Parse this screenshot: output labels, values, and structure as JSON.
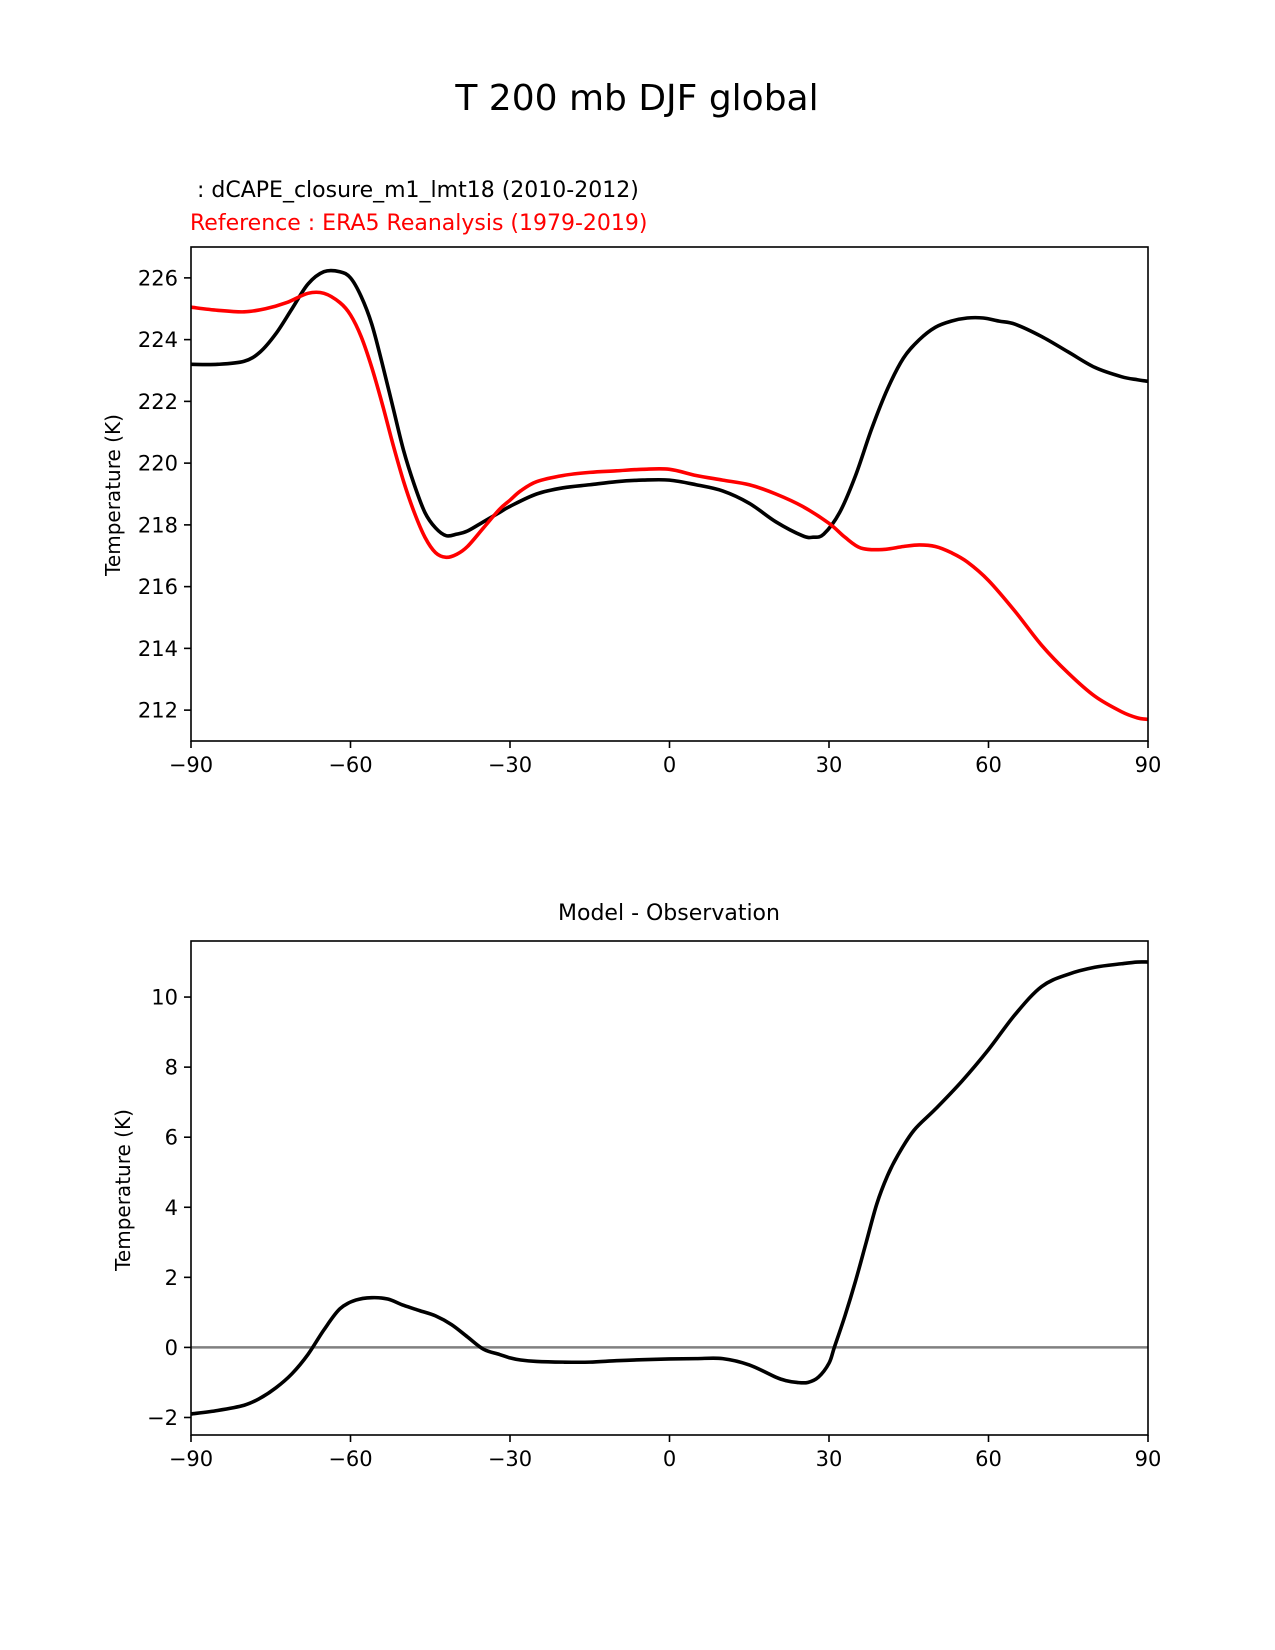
{
  "figure": {
    "suptitle": "T 200 mb DJF global"
  },
  "chart_data": [
    {
      "type": "line",
      "panel": "top",
      "title_left": "",
      "title_model": " : dCAPE_closure_m1_lmt18 (2010-2012)",
      "title_reference": "Reference : ERA5 Reanalysis (1979-2019)",
      "ylabel": "Temperature (K)",
      "xlabel": "",
      "xlim": [
        -90,
        90
      ],
      "ylim": [
        211,
        227
      ],
      "xticks": [
        -90,
        -60,
        -30,
        0,
        30,
        60,
        90
      ],
      "xtick_labels": [
        "−90",
        "−60",
        "−30",
        "0",
        "30",
        "60",
        "90"
      ],
      "yticks": [
        212,
        214,
        216,
        218,
        220,
        222,
        224,
        226
      ],
      "ytick_labels": [
        "212",
        "214",
        "216",
        "218",
        "220",
        "222",
        "224",
        "226"
      ],
      "series": [
        {
          "name": "dCAPE_closure_m1_lmt18 (2010-2012)",
          "color": "#000000",
          "x": [
            -90,
            -85,
            -80,
            -77,
            -74,
            -71,
            -68,
            -65,
            -62,
            -60,
            -58,
            -56,
            -54,
            -52,
            -50,
            -48,
            -46,
            -44,
            -42,
            -40,
            -38,
            -35,
            -32,
            -30,
            -25,
            -20,
            -15,
            -10,
            -5,
            0,
            5,
            10,
            15,
            20,
            25,
            27,
            29,
            32,
            35,
            38,
            41,
            44,
            47,
            50,
            53,
            56,
            59,
            62,
            65,
            70,
            75,
            80,
            85,
            88,
            90
          ],
          "y": [
            223.2,
            223.2,
            223.3,
            223.6,
            224.2,
            225.0,
            225.8,
            226.2,
            226.2,
            226.0,
            225.4,
            224.5,
            223.2,
            221.8,
            220.4,
            219.3,
            218.4,
            217.9,
            217.65,
            217.7,
            217.8,
            218.1,
            218.4,
            218.6,
            219.0,
            219.2,
            219.3,
            219.4,
            219.45,
            219.45,
            219.3,
            219.1,
            218.7,
            218.1,
            217.65,
            217.6,
            217.7,
            218.4,
            219.6,
            221.1,
            222.4,
            223.4,
            224.0,
            224.4,
            224.6,
            224.7,
            224.7,
            224.6,
            224.5,
            224.1,
            223.6,
            223.1,
            222.8,
            222.7,
            222.65
          ]
        },
        {
          "name": "Reference : ERA5 Reanalysis (1979-2019)",
          "color": "#ff0000",
          "x": [
            -90,
            -85,
            -80,
            -76,
            -72,
            -68,
            -65,
            -62,
            -60,
            -58,
            -56,
            -54,
            -52,
            -50,
            -48,
            -46,
            -44,
            -42,
            -40,
            -38,
            -35,
            -32,
            -30,
            -28,
            -25,
            -20,
            -15,
            -10,
            -5,
            0,
            5,
            10,
            15,
            20,
            25,
            30,
            33,
            36,
            40,
            44,
            47,
            50,
            53,
            56,
            60,
            65,
            70,
            75,
            80,
            85,
            88,
            90
          ],
          "y": [
            225.05,
            224.95,
            224.9,
            225.0,
            225.2,
            225.5,
            225.5,
            225.2,
            224.8,
            224.1,
            223.1,
            221.9,
            220.6,
            219.4,
            218.4,
            217.6,
            217.1,
            216.95,
            217.05,
            217.3,
            217.9,
            218.5,
            218.8,
            219.1,
            219.4,
            219.6,
            219.7,
            219.75,
            219.8,
            219.8,
            219.6,
            219.45,
            219.3,
            219.0,
            218.6,
            218.05,
            217.6,
            217.25,
            217.2,
            217.3,
            217.35,
            217.3,
            217.1,
            216.8,
            216.2,
            215.2,
            214.1,
            213.2,
            212.45,
            211.95,
            211.75,
            211.7
          ]
        }
      ]
    },
    {
      "type": "line",
      "panel": "bottom",
      "title": "Model - Observation",
      "ylabel": "Temperature (K)",
      "xlabel": "",
      "xlim": [
        -90,
        90
      ],
      "ylim": [
        -2.5,
        11.6
      ],
      "xticks": [
        -90,
        -60,
        -30,
        0,
        30,
        60,
        90
      ],
      "xtick_labels": [
        "−90",
        "−60",
        "−30",
        "0",
        "30",
        "60",
        "90"
      ],
      "yticks": [
        -2,
        0,
        2,
        4,
        6,
        8,
        10
      ],
      "ytick_labels": [
        "−2",
        "0",
        "2",
        "4",
        "6",
        "8",
        "10"
      ],
      "reference_line": {
        "y": 0,
        "color": "#808080"
      },
      "series": [
        {
          "name": "Model - Observation",
          "color": "#000000",
          "x": [
            -90,
            -85,
            -80,
            -77,
            -74,
            -71,
            -68,
            -65,
            -62,
            -59,
            -56,
            -53,
            -50,
            -47,
            -44,
            -41,
            -38,
            -35,
            -32,
            -30,
            -28,
            -25,
            -20,
            -15,
            -10,
            -5,
            0,
            5,
            10,
            15,
            20,
            22,
            24,
            26,
            28,
            30,
            31,
            33,
            35,
            37,
            39,
            41,
            43,
            46,
            50,
            55,
            60,
            65,
            70,
            75,
            80,
            85,
            88,
            90
          ],
          "y": [
            -1.9,
            -1.8,
            -1.65,
            -1.45,
            -1.15,
            -0.75,
            -0.2,
            0.5,
            1.1,
            1.35,
            1.42,
            1.38,
            1.2,
            1.05,
            0.9,
            0.65,
            0.3,
            -0.05,
            -0.2,
            -0.3,
            -0.36,
            -0.4,
            -0.42,
            -0.42,
            -0.38,
            -0.35,
            -0.33,
            -0.32,
            -0.32,
            -0.5,
            -0.85,
            -0.95,
            -1.0,
            -1.0,
            -0.85,
            -0.45,
            0.0,
            0.9,
            1.9,
            3.0,
            4.1,
            4.9,
            5.5,
            6.2,
            6.8,
            7.6,
            8.5,
            9.5,
            10.3,
            10.65,
            10.85,
            10.95,
            11.0,
            11.0
          ]
        }
      ]
    }
  ]
}
